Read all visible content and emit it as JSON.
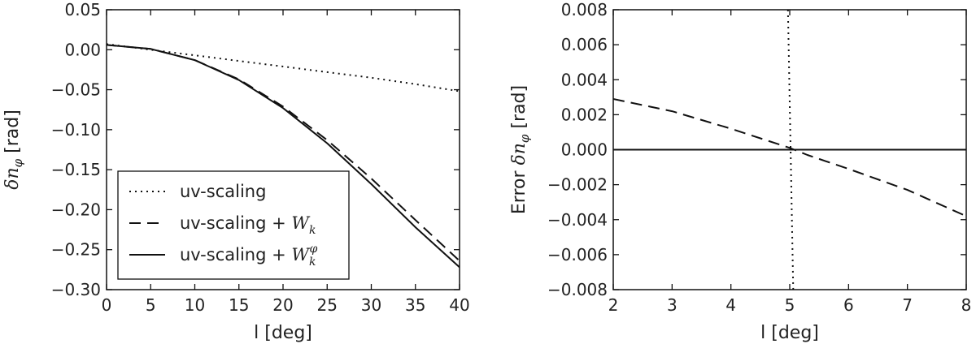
{
  "chart_data": [
    {
      "type": "line",
      "xlabel": "l [deg]",
      "ylabel": "δn_φ [rad]",
      "ylabel_parts": {
        "main": "δn",
        "sub": "φ",
        "unit": " [rad]"
      },
      "xlim": [
        0,
        40
      ],
      "ylim": [
        -0.3,
        0.05
      ],
      "xticks": [
        0,
        5,
        10,
        15,
        20,
        25,
        30,
        35,
        40
      ],
      "xtick_labels": [
        "0",
        "5",
        "10",
        "15",
        "20",
        "25",
        "30",
        "35",
        "40"
      ],
      "yticks": [
        0.05,
        0.0,
        -0.05,
        -0.1,
        -0.15,
        -0.2,
        -0.25,
        -0.3
      ],
      "ytick_labels": [
        "0.05",
        "0.00",
        "−0.05",
        "−0.10",
        "−0.15",
        "−0.20",
        "−0.25",
        "−0.30"
      ],
      "grid": false,
      "legend_position": "bottom-left",
      "series": [
        {
          "name": "uv-scaling",
          "legend_main": "uv-scaling",
          "style": "dotted",
          "x": [
            0,
            5,
            10,
            15,
            20,
            25,
            30,
            35,
            40
          ],
          "y": [
            0.007,
            0.0,
            -0.007,
            -0.014,
            -0.021,
            -0.028,
            -0.035,
            -0.043,
            -0.052
          ]
        },
        {
          "name": "uv-scaling + W_k",
          "legend_main": "uv-scaling + ",
          "legend_math": "W",
          "legend_sub": "k",
          "legend_sup": "",
          "style": "dashed",
          "x": [
            0,
            5,
            10,
            15,
            20,
            25,
            30,
            35,
            40
          ],
          "y": [
            0.006,
            0.001,
            -0.013,
            -0.037,
            -0.071,
            -0.113,
            -0.161,
            -0.213,
            -0.264
          ]
        },
        {
          "name": "uv-scaling + W_k^φ",
          "legend_main": "uv-scaling + ",
          "legend_math": "W",
          "legend_sub": "k",
          "legend_sup": "φ",
          "style": "solid",
          "x": [
            0,
            5,
            10,
            15,
            20,
            25,
            30,
            35,
            40
          ],
          "y": [
            0.006,
            0.001,
            -0.013,
            -0.038,
            -0.073,
            -0.117,
            -0.168,
            -0.222,
            -0.272
          ]
        }
      ]
    },
    {
      "type": "line",
      "xlabel": "l [deg]",
      "ylabel": "Error δn_φ [rad]",
      "ylabel_parts": {
        "pre": "Error ",
        "main": "δn",
        "sub": "φ",
        "unit": " [rad]"
      },
      "xlim": [
        2,
        8
      ],
      "ylim": [
        -0.008,
        0.008
      ],
      "xticks": [
        2,
        3,
        4,
        5,
        6,
        7,
        8
      ],
      "xtick_labels": [
        "2",
        "3",
        "4",
        "5",
        "6",
        "7",
        "8"
      ],
      "yticks": [
        0.008,
        0.006,
        0.004,
        0.002,
        0.0,
        -0.002,
        -0.004,
        -0.006,
        -0.008
      ],
      "ytick_labels": [
        "0.008",
        "0.006",
        "0.004",
        "0.002",
        "0.000",
        "−0.002",
        "−0.004",
        "−0.006",
        "−0.008"
      ],
      "grid": false,
      "series": [
        {
          "style": "dotted",
          "x": [
            4.97,
            5.06
          ],
          "y": [
            0.008,
            -0.008
          ]
        },
        {
          "style": "dashed",
          "x": [
            2.0,
            3.0,
            4.0,
            5.0,
            5.3,
            6.0,
            7.0,
            8.0
          ],
          "y": [
            0.0029,
            0.0022,
            0.0012,
            0.0001,
            -0.0003,
            -0.0011,
            -0.0023,
            -0.0038
          ]
        },
        {
          "style": "solid",
          "x": [
            2,
            8
          ],
          "y": [
            0.0,
            0.0
          ]
        }
      ]
    }
  ]
}
